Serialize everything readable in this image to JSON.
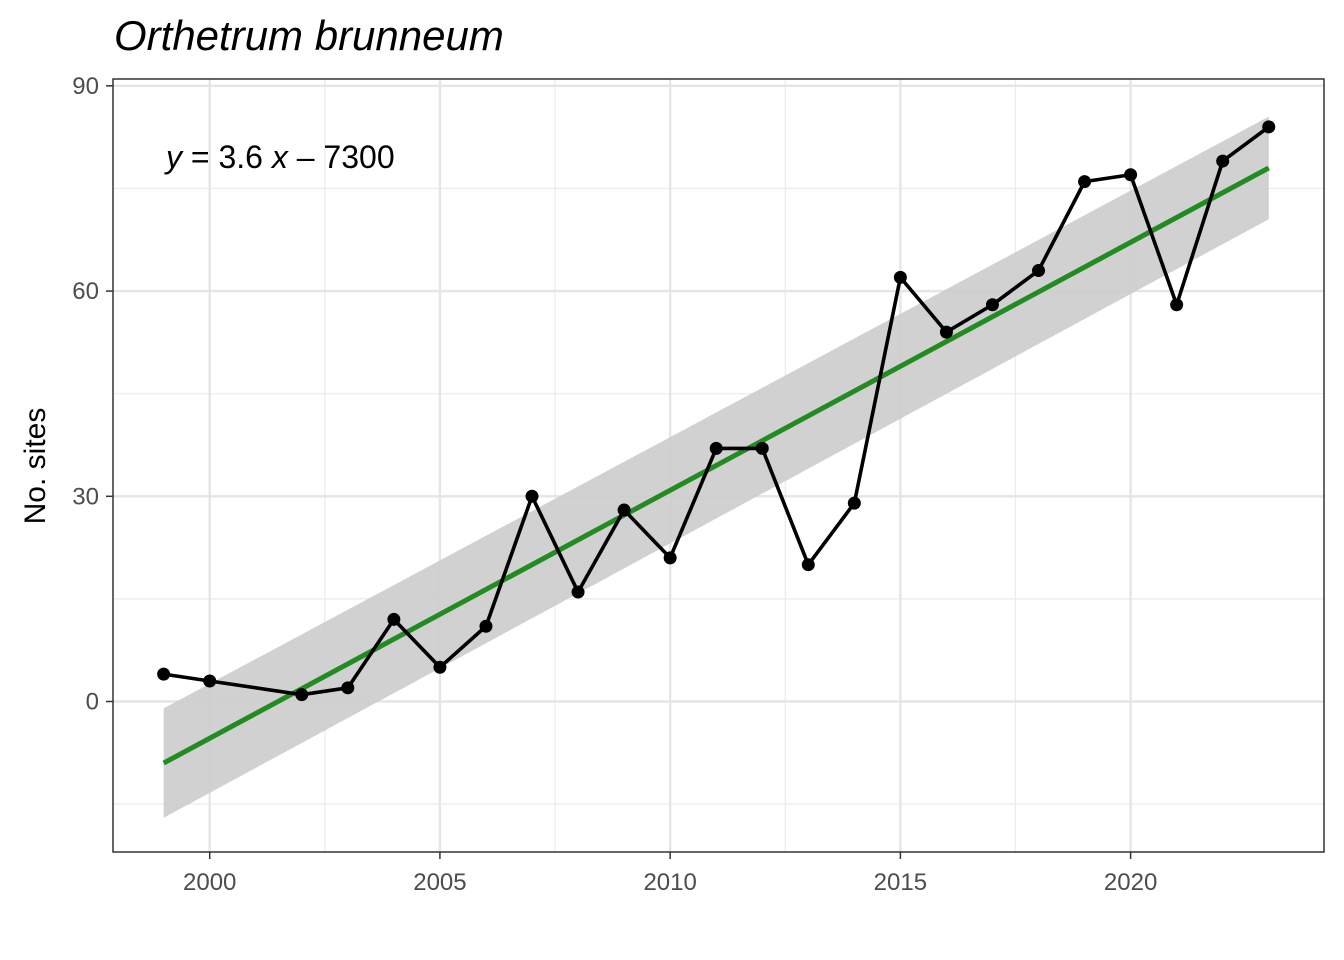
{
  "chart_data": {
    "type": "line",
    "title": "Orthetrum brunneum",
    "xlabel": "",
    "ylabel": "No. sites",
    "xlim": [
      1997.9,
      2024.2
    ],
    "ylim": [
      -22,
      91
    ],
    "x_ticks": [
      2000,
      2005,
      2010,
      2015,
      2020
    ],
    "x_tick_labels": [
      "2000",
      "2005",
      "2010",
      "2015",
      "2020"
    ],
    "y_ticks": [
      0,
      30,
      60,
      90
    ],
    "y_tick_labels": [
      "0",
      "30",
      "60",
      "90"
    ],
    "grid": true,
    "theme": "bw",
    "series": [
      {
        "x": [
          1999,
          2000,
          2002,
          2003,
          2004,
          2005,
          2006,
          2007,
          2008,
          2009,
          2010,
          2011,
          2012,
          2013,
          2014,
          2015,
          2016,
          2017,
          2018,
          2019,
          2020,
          2021,
          2022,
          2023
        ],
        "y": [
          4,
          3,
          1,
          2,
          12,
          5,
          11,
          30,
          16,
          28,
          21,
          37,
          37,
          20,
          29,
          62,
          54,
          58,
          63,
          76,
          77,
          58,
          79,
          84
        ],
        "color": "#000000",
        "markers": true
      }
    ],
    "trend": {
      "x": [
        1999,
        2023
      ],
      "y": [
        -9,
        78
      ],
      "color": "#228B22",
      "ci_lower": [
        -17,
        70.5
      ],
      "ci_upper": [
        -1,
        85.5
      ],
      "ci_color": "#cccccc"
    },
    "equation": {
      "y_var": "y",
      "eq_text": " = 3.6 ",
      "x_var": "x",
      "rest": " – 7300"
    }
  }
}
